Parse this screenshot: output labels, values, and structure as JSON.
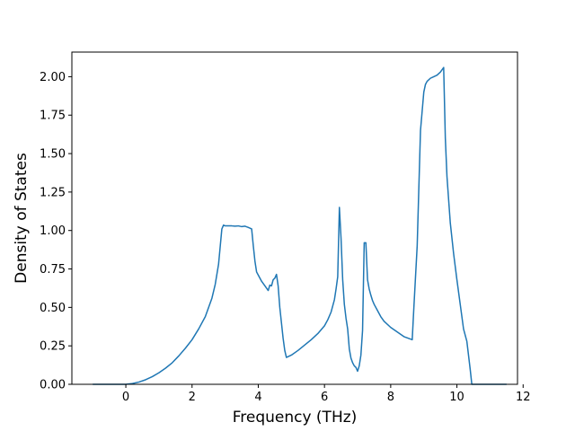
{
  "chart_data": {
    "type": "line",
    "title": "",
    "xlabel": "Frequency (THz)",
    "ylabel": "Density of States",
    "xlim": [
      -1.63,
      11.83
    ],
    "ylim": [
      0.0,
      2.16
    ],
    "xticks": [
      0,
      2,
      4,
      6,
      8,
      10,
      12
    ],
    "xtick_labels": [
      "0",
      "2",
      "4",
      "6",
      "8",
      "10",
      "12"
    ],
    "yticks": [
      0.0,
      0.25,
      0.5,
      0.75,
      1.0,
      1.25,
      1.5,
      1.75,
      2.0
    ],
    "ytick_labels": [
      "0.00",
      "0.25",
      "0.50",
      "0.75",
      "1.00",
      "1.25",
      "1.50",
      "1.75",
      "2.00"
    ],
    "grid": false,
    "color": "#1f77b4",
    "series": [
      {
        "name": "",
        "x": [
          -1.0,
          -0.5,
          0.0,
          0.2,
          0.4,
          0.6,
          0.8,
          1.0,
          1.2,
          1.4,
          1.6,
          1.8,
          2.0,
          2.2,
          2.4,
          2.6,
          2.7,
          2.8,
          2.9,
          2.95,
          3.0,
          3.1,
          3.2,
          3.3,
          3.4,
          3.5,
          3.6,
          3.7,
          3.8,
          3.85,
          3.9,
          3.95,
          4.0,
          4.1,
          4.2,
          4.3,
          4.35,
          4.4,
          4.45,
          4.5,
          4.55,
          4.6,
          4.65,
          4.7,
          4.75,
          4.8,
          4.85,
          5.0,
          5.2,
          5.4,
          5.6,
          5.8,
          6.0,
          6.1,
          6.2,
          6.3,
          6.35,
          6.4,
          6.45,
          6.5,
          6.55,
          6.6,
          6.65,
          6.7,
          6.75,
          6.8,
          6.85,
          6.9,
          6.95,
          7.0,
          7.05,
          7.1,
          7.15,
          7.2,
          7.25,
          7.3,
          7.35,
          7.4,
          7.45,
          7.5,
          7.6,
          7.7,
          7.8,
          8.0,
          8.2,
          8.4,
          8.65,
          8.7,
          8.8,
          8.9,
          9.0,
          9.05,
          9.1,
          9.2,
          9.3,
          9.4,
          9.5,
          9.6,
          9.65,
          9.7,
          9.8,
          9.9,
          10.0,
          10.1,
          10.2,
          10.3,
          10.4,
          10.45,
          10.5,
          10.55,
          10.6,
          11.0,
          11.5
        ],
        "values": [
          0.0,
          0.0,
          0.0,
          0.005,
          0.015,
          0.03,
          0.05,
          0.075,
          0.105,
          0.14,
          0.185,
          0.235,
          0.29,
          0.36,
          0.44,
          0.56,
          0.65,
          0.78,
          1.01,
          1.035,
          1.03,
          1.03,
          1.03,
          1.028,
          1.03,
          1.025,
          1.028,
          1.02,
          1.01,
          0.9,
          0.8,
          0.73,
          0.71,
          0.67,
          0.64,
          0.61,
          0.645,
          0.64,
          0.68,
          0.69,
          0.715,
          0.64,
          0.5,
          0.4,
          0.3,
          0.22,
          0.175,
          0.19,
          0.22,
          0.255,
          0.29,
          0.33,
          0.38,
          0.42,
          0.47,
          0.55,
          0.62,
          0.7,
          1.15,
          0.95,
          0.68,
          0.52,
          0.43,
          0.36,
          0.23,
          0.17,
          0.14,
          0.12,
          0.11,
          0.085,
          0.12,
          0.19,
          0.35,
          0.92,
          0.92,
          0.68,
          0.62,
          0.58,
          0.545,
          0.52,
          0.48,
          0.44,
          0.41,
          0.37,
          0.34,
          0.31,
          0.29,
          0.5,
          0.9,
          1.65,
          1.9,
          1.95,
          1.97,
          1.99,
          2.0,
          2.01,
          2.03,
          2.06,
          1.6,
          1.35,
          1.05,
          0.85,
          0.68,
          0.52,
          0.36,
          0.28,
          0.1,
          0.0,
          0.0,
          0.0,
          0.0,
          0.0,
          0.0
        ]
      }
    ]
  }
}
